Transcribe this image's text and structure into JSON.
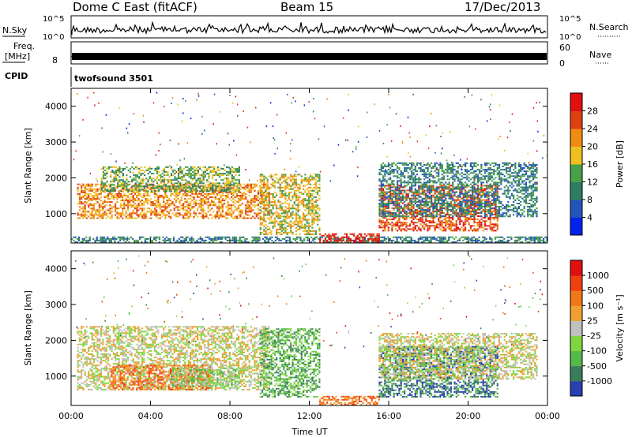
{
  "header": {
    "station": "Dome C East (fitACF)",
    "beam": "Beam 15",
    "date": "17/Dec/2013"
  },
  "strips": {
    "nsky_label": "N.Sky",
    "nsky_ticks": [
      "10^5",
      "10^0"
    ],
    "nsearch_label": "N.Search",
    "nsearch_ticks": [
      "10^5",
      "10^0"
    ],
    "freq_label": "Freq.",
    "freq_unit": "[MHz]",
    "freq_ticks": [
      "8"
    ],
    "nave_label": "Nave",
    "nave_ticks": [
      "60",
      "0"
    ],
    "cpid_label": "CPID",
    "cpid_value": "twofsound 3501"
  },
  "chart_data": [
    {
      "type": "heatmap",
      "title": "",
      "xlabel": "Time UT",
      "ylabel": "Slant Range [km]",
      "x_ticks": [
        "00:00",
        "04:00",
        "08:00",
        "12:00",
        "16:00",
        "20:00",
        "00:00"
      ],
      "xlim_hours": [
        0,
        24
      ],
      "y_ticks": [
        1000,
        2000,
        3000,
        4000
      ],
      "ylim": [
        180,
        4500
      ],
      "colorbar": {
        "label": "Power [dB]",
        "ticks": [
          "4",
          "8",
          "12",
          "16",
          "20",
          "24",
          "28"
        ],
        "colors": [
          "#0022ee",
          "#2255bb",
          "#2e7d62",
          "#48a048",
          "#f0c020",
          "#f08c10",
          "#e04010",
          "#e01010"
        ]
      },
      "echo_bands": [
        {
          "t0": 0.0,
          "t1": 24.0,
          "r0": 180,
          "r1": 320,
          "level": 2
        },
        {
          "t0": 0.3,
          "t1": 10.0,
          "r0": 850,
          "r1": 1800,
          "level": 5
        },
        {
          "t0": 1.5,
          "t1": 8.5,
          "r0": 1600,
          "r1": 2300,
          "level": 3
        },
        {
          "t0": 9.5,
          "t1": 12.5,
          "r0": 400,
          "r1": 2100,
          "level": 4
        },
        {
          "t0": 12.5,
          "t1": 15.5,
          "r0": 180,
          "r1": 450,
          "level": 7
        },
        {
          "t0": 15.5,
          "t1": 21.5,
          "r0": 500,
          "r1": 1800,
          "level": 6
        },
        {
          "t0": 15.5,
          "t1": 23.5,
          "r0": 900,
          "r1": 2400,
          "level": 2
        }
      ]
    },
    {
      "type": "heatmap",
      "title": "",
      "xlabel": "Time UT",
      "ylabel": "Slant Range [km]",
      "x_ticks": [
        "00:00",
        "04:00",
        "08:00",
        "12:00",
        "16:00",
        "20:00",
        "00:00"
      ],
      "xlim_hours": [
        0,
        24
      ],
      "y_ticks": [
        1000,
        2000,
        3000,
        4000
      ],
      "ylim": [
        180,
        4500
      ],
      "colorbar": {
        "label": "Velocity [m s⁻¹]",
        "ticks": [
          "1000",
          "500",
          "100",
          "25",
          "-25",
          "-100",
          "-500",
          "-1000"
        ],
        "colors": [
          "#2a3fb0",
          "#3a7d5a",
          "#55b94a",
          "#7fd640",
          "#c0c0c0",
          "#f0a030",
          "#f07818",
          "#f04010",
          "#e01010"
        ]
      },
      "echo_bands": [
        {
          "t0": 0.3,
          "t1": 10.0,
          "r0": 600,
          "r1": 2400,
          "level": 4
        },
        {
          "t0": 2.0,
          "t1": 7.0,
          "r0": 600,
          "r1": 1300,
          "level": 6
        },
        {
          "t0": 5.0,
          "t1": 8.5,
          "r0": 700,
          "r1": 1200,
          "level": 3
        },
        {
          "t0": 9.5,
          "t1": 12.5,
          "r0": 400,
          "r1": 2300,
          "level": 2
        },
        {
          "t0": 12.5,
          "t1": 15.5,
          "r0": 180,
          "r1": 450,
          "level": 6
        },
        {
          "t0": 15.5,
          "t1": 21.5,
          "r0": 400,
          "r1": 1800,
          "level": 1
        },
        {
          "t0": 15.5,
          "t1": 23.5,
          "r0": 900,
          "r1": 2200,
          "level": 4
        }
      ]
    }
  ]
}
